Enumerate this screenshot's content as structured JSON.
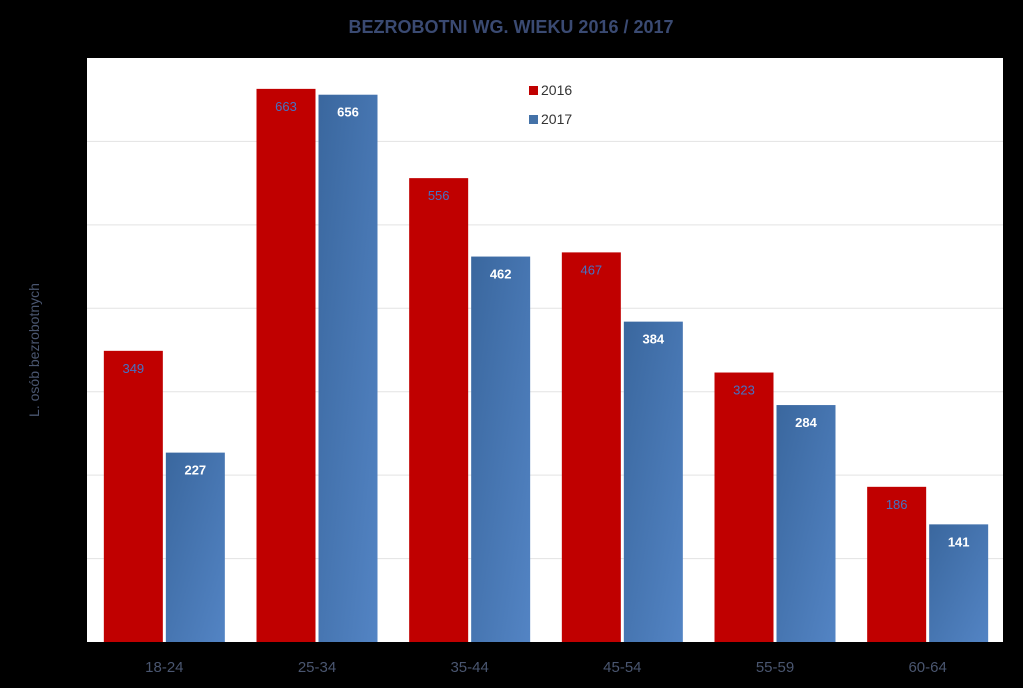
{
  "chart_data": {
    "type": "bar",
    "title": "BEZROBOTNI WG. WIEKU 2016 / 2017",
    "xlabel": "",
    "ylabel": "L. osób bezrobotnych",
    "categories": [
      "18-24",
      "25-34",
      "35-44",
      "45-54",
      "55-59",
      "60-64"
    ],
    "series": [
      {
        "name": "2016",
        "values": [
          349,
          663,
          556,
          467,
          323,
          186
        ],
        "color": "#c00000"
      },
      {
        "name": "2017",
        "values": [
          227,
          656,
          462,
          384,
          284,
          141
        ],
        "color": "#4472a8"
      }
    ],
    "ylim": [
      0,
      700
    ],
    "grid": true,
    "legend_position": "top-center",
    "colors": {
      "background": "#000000",
      "plot_area": "#ffffff",
      "title": "#3a4a72",
      "axis_text": "#4a5670",
      "label_2016": "#4472c4",
      "label_2017": "#ffffff"
    }
  }
}
